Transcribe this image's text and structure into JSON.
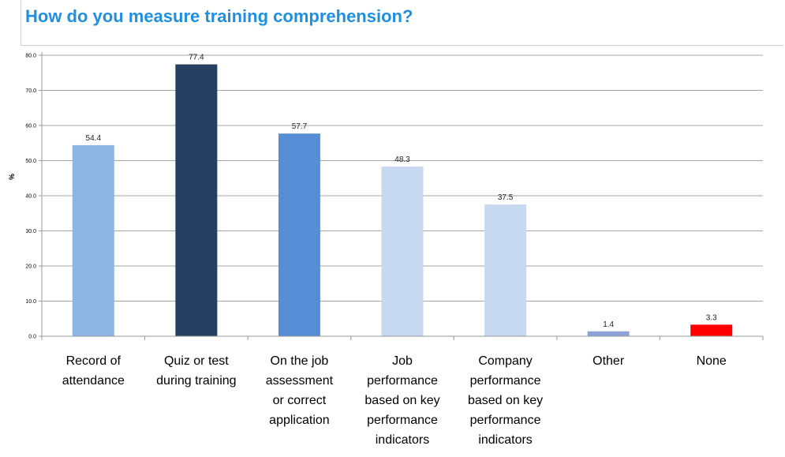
{
  "title": "How do you measure training comprehension?",
  "chart_data": {
    "type": "bar",
    "title": "How do you measure training comprehension?",
    "ylabel": "%",
    "xlabel": "",
    "ylim": [
      0,
      80
    ],
    "yticks": [
      "0.0",
      "10.0",
      "20.0",
      "30.0",
      "40.0",
      "50.0",
      "60.0",
      "70.0",
      "80.0"
    ],
    "grid": true,
    "legend": "none",
    "categories": [
      [
        "Record of",
        "attendance"
      ],
      [
        "Quiz or test",
        "during training"
      ],
      [
        "On the job",
        "assessment",
        "or correct",
        "application"
      ],
      [
        "Job",
        "performance",
        "based on key",
        "performance",
        "indicators"
      ],
      [
        "Company",
        "performance",
        "based on key",
        "performance",
        "indicators"
      ],
      [
        "Other"
      ],
      [
        "None"
      ]
    ],
    "values": [
      54.4,
      77.4,
      57.7,
      48.3,
      37.5,
      1.4,
      3.3
    ],
    "value_labels": [
      "54.4",
      "77.4",
      "57.7",
      "48.3",
      "37.5",
      "1.4",
      "3.3"
    ],
    "colors": [
      "#8eb4e3",
      "#243f60",
      "#558ed5",
      "#c6d9f1",
      "#c6d9f1",
      "#8ea3d7",
      "#ff0000"
    ]
  }
}
